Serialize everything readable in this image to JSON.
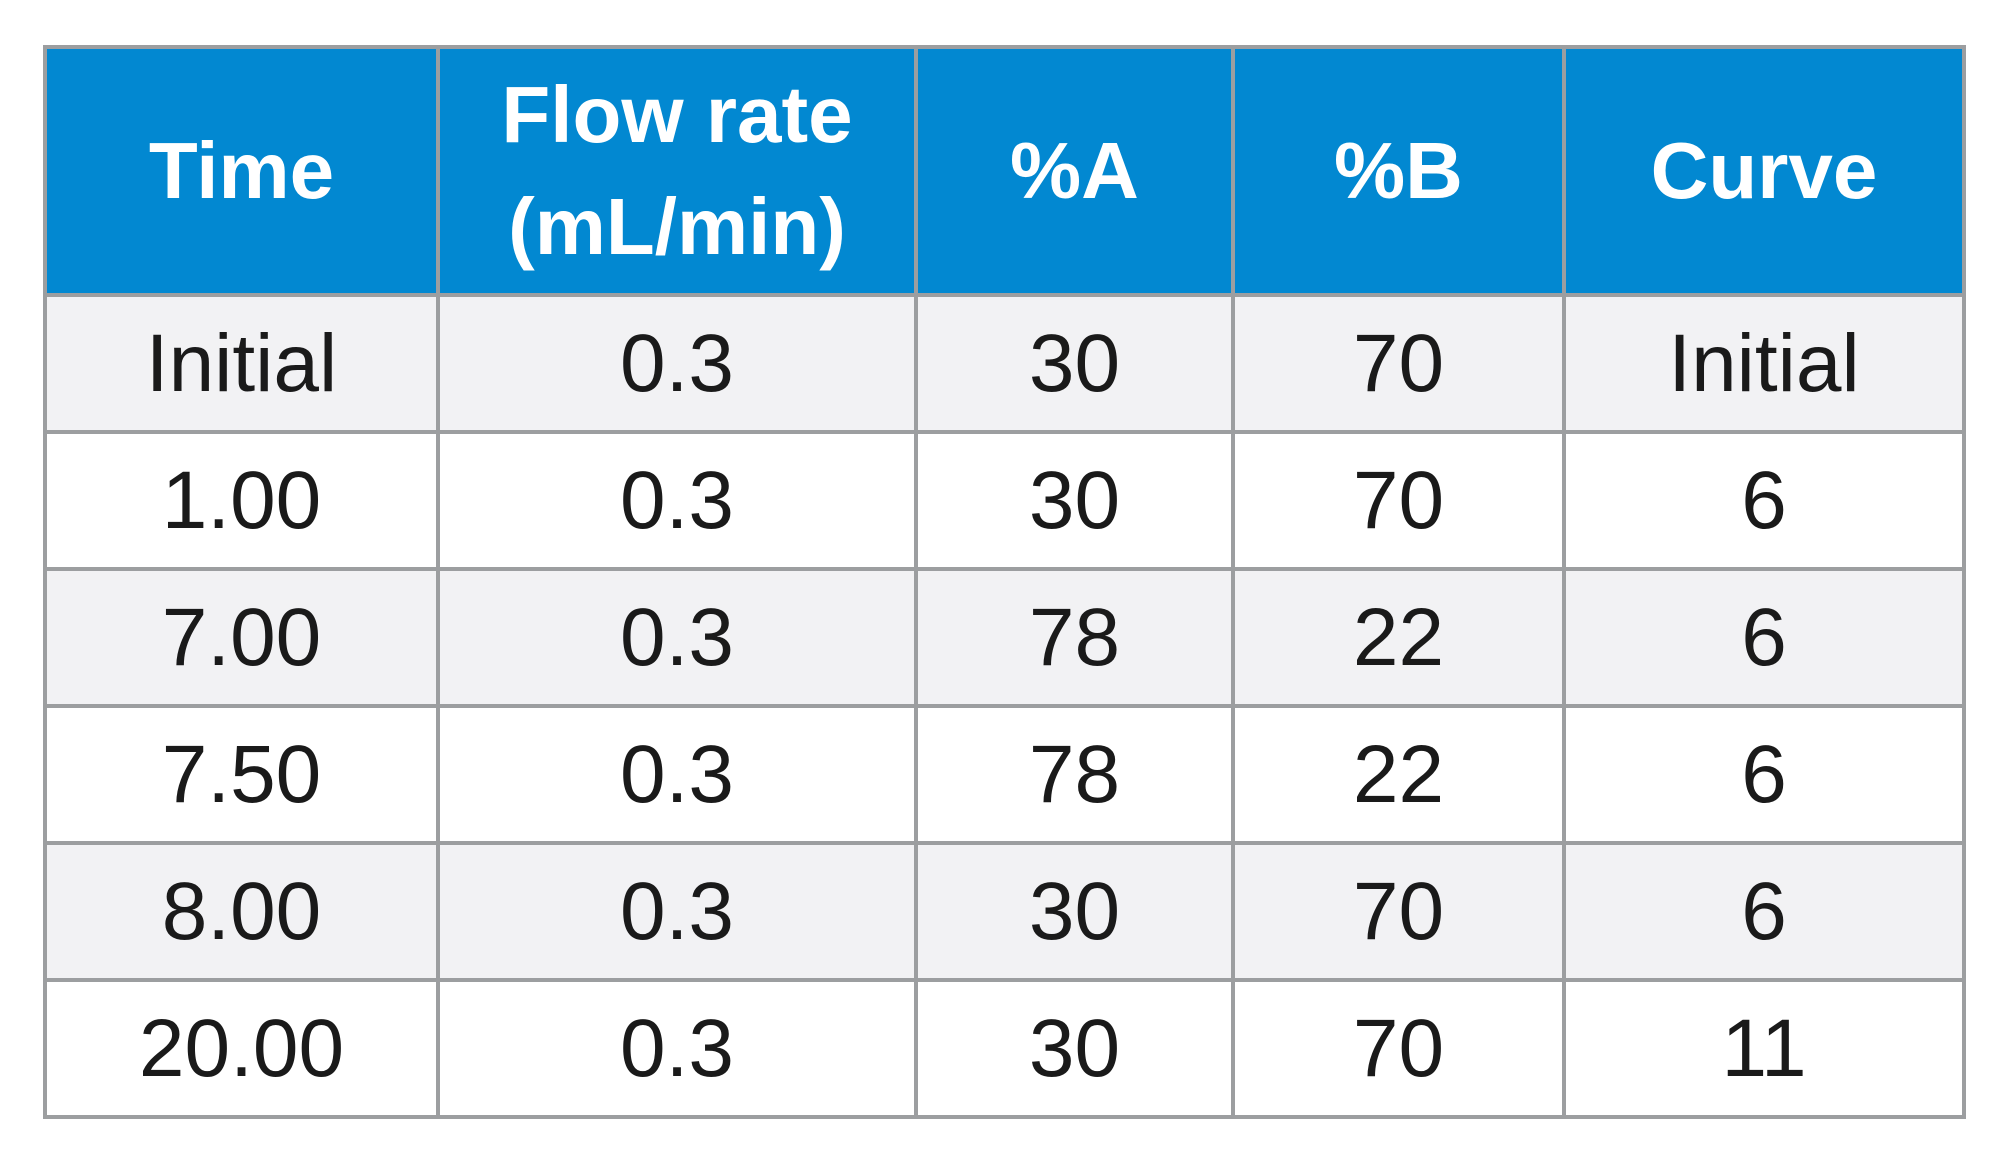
{
  "table": {
    "headers": [
      {
        "line1": "Time",
        "line2": ""
      },
      {
        "line1": "Flow rate",
        "line2": "(mL/min)"
      },
      {
        "line1": "%A",
        "line2": ""
      },
      {
        "line1": "%B",
        "line2": ""
      },
      {
        "line1": "Curve",
        "line2": ""
      }
    ],
    "rows": [
      [
        "Initial",
        "0.3",
        "30",
        "70",
        "Initial"
      ],
      [
        "1.00",
        "0.3",
        "30",
        "70",
        "6"
      ],
      [
        "7.00",
        "0.3",
        "78",
        "22",
        "6"
      ],
      [
        "7.50",
        "0.3",
        "78",
        "22",
        "6"
      ],
      [
        "8.00",
        "0.3",
        "30",
        "70",
        "6"
      ],
      [
        "20.00",
        "0.3",
        "30",
        "70",
        "11"
      ]
    ]
  },
  "colors": {
    "header_bg": "#0288d1",
    "header_text": "#ffffff",
    "row_alt_bg": "#f2f2f4",
    "grid": "#9c9ea0"
  }
}
